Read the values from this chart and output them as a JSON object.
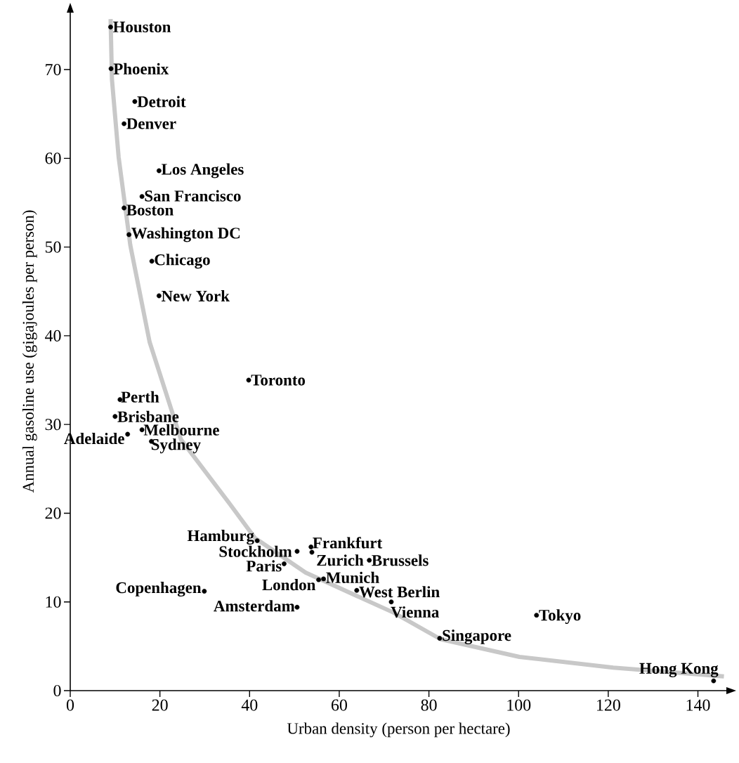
{
  "chart_data": {
    "type": "scatter",
    "xlabel": "Urban density (person per hectare)",
    "ylabel": "Annual gasoline use (gigajoules per person)",
    "xlim": [
      0,
      146.5
    ],
    "ylim": [
      0,
      76.5
    ],
    "xticks": [
      0,
      20,
      40,
      60,
      80,
      100,
      120,
      140
    ],
    "yticks": [
      0,
      10,
      20,
      30,
      40,
      50,
      60,
      70
    ],
    "series": [
      {
        "color": "#000000",
        "marker": "circle",
        "x": [
          9.0,
          9.1,
          14.4,
          12.0,
          19.8,
          16.0,
          12.0,
          13.1,
          18.2,
          19.8,
          39.8,
          11.1,
          10.0,
          12.8,
          16.0,
          18.1,
          41.7,
          50.6,
          53.7,
          53.9,
          47.7,
          66.7,
          55.4,
          56.5,
          29.9,
          63.9,
          71.6,
          50.6,
          104.0,
          82.4,
          143.5
        ],
        "values": [
          74.8,
          70.1,
          66.4,
          63.9,
          58.6,
          55.7,
          54.4,
          51.4,
          48.4,
          44.5,
          35.0,
          32.8,
          30.9,
          28.9,
          29.4,
          28.1,
          16.9,
          15.7,
          16.2,
          15.6,
          14.3,
          14.7,
          12.5,
          12.6,
          11.2,
          11.3,
          10.0,
          9.4,
          8.5,
          5.9,
          1.1
        ]
      },
      {
        "type": "line",
        "color": "#c8c8c8",
        "line_style": "solid",
        "marker": "none",
        "x": [
          9.0,
          9.3,
          10.8,
          13.4,
          17.7,
          24.7,
          35.5,
          41.2,
          52.5,
          72.1,
          82.6,
          100.2,
          121.1,
          145.8
        ],
        "values": [
          75.7,
          68.9,
          60.1,
          50.2,
          39.3,
          28.3,
          21.1,
          17.2,
          13.3,
          8.8,
          5.8,
          3.8,
          2.6,
          1.6
        ]
      }
    ],
    "annotations": [
      {
        "text": "Houston",
        "x": 9.0,
        "y": 74.8
      },
      {
        "text": "Phoenix",
        "x": 9.1,
        "y": 70.1
      },
      {
        "text": "Detroit",
        "x": 14.4,
        "y": 66.4
      },
      {
        "text": "Denver",
        "x": 12.0,
        "y": 63.9
      },
      {
        "text": "Los Angeles",
        "x": 19.8,
        "y": 58.6
      },
      {
        "text": "San Francisco",
        "x": 16.0,
        "y": 55.7
      },
      {
        "text": "Boston",
        "x": 12.0,
        "y": 54.4
      },
      {
        "text": "Washington DC",
        "x": 13.1,
        "y": 51.4
      },
      {
        "text": "Chicago",
        "x": 18.2,
        "y": 48.4
      },
      {
        "text": "New York",
        "x": 19.8,
        "y": 44.5
      },
      {
        "text": "Toronto",
        "x": 39.8,
        "y": 35.0
      },
      {
        "text": "Perth",
        "x": 11.1,
        "y": 32.8
      },
      {
        "text": "Brisbane",
        "x": 10.0,
        "y": 30.9
      },
      {
        "text": "Adelaide",
        "x": 12.8,
        "y": 28.9
      },
      {
        "text": "Melbourne",
        "x": 16.0,
        "y": 29.4
      },
      {
        "text": "Sydney",
        "x": 18.1,
        "y": 28.1
      },
      {
        "text": "Hamburg",
        "x": 41.7,
        "y": 16.9
      },
      {
        "text": "Stockholm",
        "x": 50.6,
        "y": 15.7
      },
      {
        "text": "Frankfurt",
        "x": 53.7,
        "y": 16.2
      },
      {
        "text": "Zurich",
        "x": 53.9,
        "y": 15.6
      },
      {
        "text": "Paris",
        "x": 47.7,
        "y": 14.3
      },
      {
        "text": "Brussels",
        "x": 66.7,
        "y": 14.7
      },
      {
        "text": "London",
        "x": 55.4,
        "y": 12.5
      },
      {
        "text": "Munich",
        "x": 56.5,
        "y": 12.6
      },
      {
        "text": "Copenhagen",
        "x": 29.9,
        "y": 11.2
      },
      {
        "text": "West Berlin",
        "x": 63.9,
        "y": 11.3
      },
      {
        "text": "Vienna",
        "x": 71.6,
        "y": 10.0
      },
      {
        "text": "Amsterdam",
        "x": 50.6,
        "y": 9.4
      },
      {
        "text": "Tokyo",
        "x": 104.0,
        "y": 8.5
      },
      {
        "text": "Singapore",
        "x": 82.4,
        "y": 5.9
      },
      {
        "text": "Hong Kong",
        "x": 143.5,
        "y": 1.1
      }
    ]
  }
}
